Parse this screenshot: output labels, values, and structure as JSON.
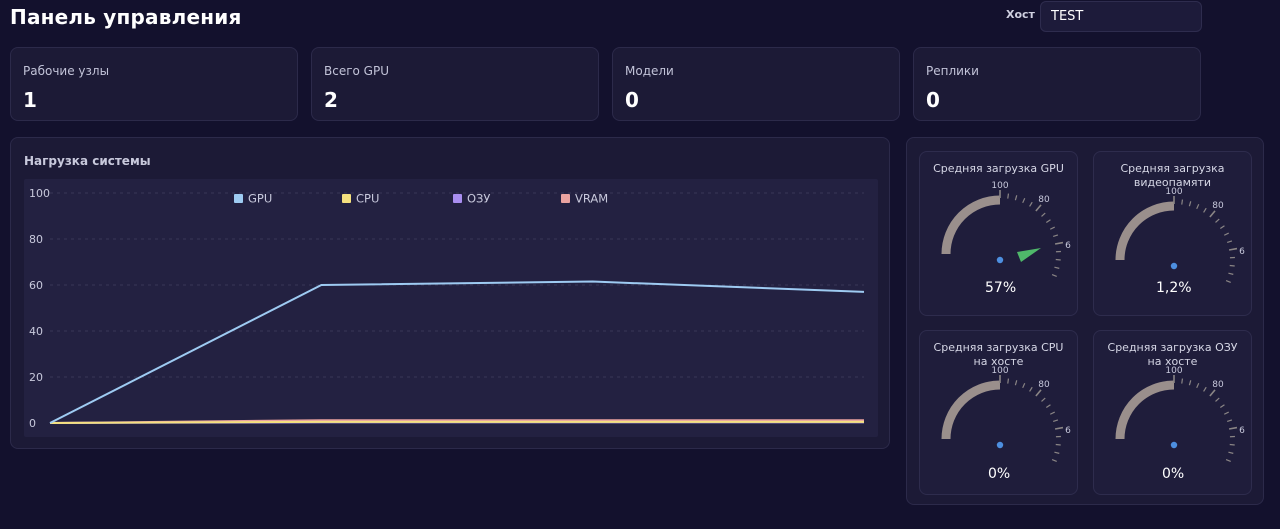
{
  "header": {
    "title": "Панель управления",
    "host_label": "Хост",
    "host_value": "TEST"
  },
  "stats": [
    {
      "label": "Рабочие узлы",
      "value": "1"
    },
    {
      "label": "Всего GPU",
      "value": "2"
    },
    {
      "label": "Модели",
      "value": "0"
    },
    {
      "label": "Реплики",
      "value": "0"
    }
  ],
  "chart_panel": {
    "title": "Нагрузка системы"
  },
  "chart_data": {
    "type": "line",
    "title": "Нагрузка системы",
    "xlabel": "",
    "ylabel": "",
    "ylim": [
      0,
      100
    ],
    "yticks": [
      "0",
      "20",
      "40",
      "60",
      "80",
      "100"
    ],
    "grid": true,
    "legend_placement": "top-center",
    "x": [
      0,
      1,
      2,
      3
    ],
    "series": [
      {
        "name": "GPU",
        "values": [
          0,
          60,
          61.5,
          57
        ],
        "color": "#9ecbf2"
      },
      {
        "name": "CPU",
        "values": [
          0,
          0.5,
          0.5,
          0.5
        ],
        "color": "#f4e07f"
      },
      {
        "name": "ОЗУ",
        "values": [
          0,
          0.3,
          0.3,
          0.3
        ],
        "color": "#a98ef0"
      },
      {
        "name": "VRAM",
        "values": [
          0,
          1.2,
          1.2,
          1.2
        ],
        "color": "#eaa3a0"
      }
    ]
  },
  "gauges": [
    {
      "title": "Средняя загрузка GPU",
      "value_text": "57%",
      "value": 57,
      "show_pointer": true,
      "pointer_color": "#4fb86a"
    },
    {
      "title": "Средняя загрузка видеопамяти",
      "value_text": "1,2%",
      "value": 1.2,
      "show_pointer": false
    },
    {
      "title": "Средняя загрузка CPU на хосте",
      "value_text": "0%",
      "value": 0,
      "show_pointer": false
    },
    {
      "title": "Средняя загрузка ОЗУ на хосте",
      "value_text": "0%",
      "value": 0,
      "show_pointer": false
    }
  ],
  "gauge_scale": {
    "label_100": "100",
    "label_80": "80",
    "label_6": "6"
  },
  "colors": {
    "background": "#13112d",
    "card": "#1c1a36",
    "gauge_track": "#9a8f8c",
    "center_dot": "#4d8fe0"
  }
}
